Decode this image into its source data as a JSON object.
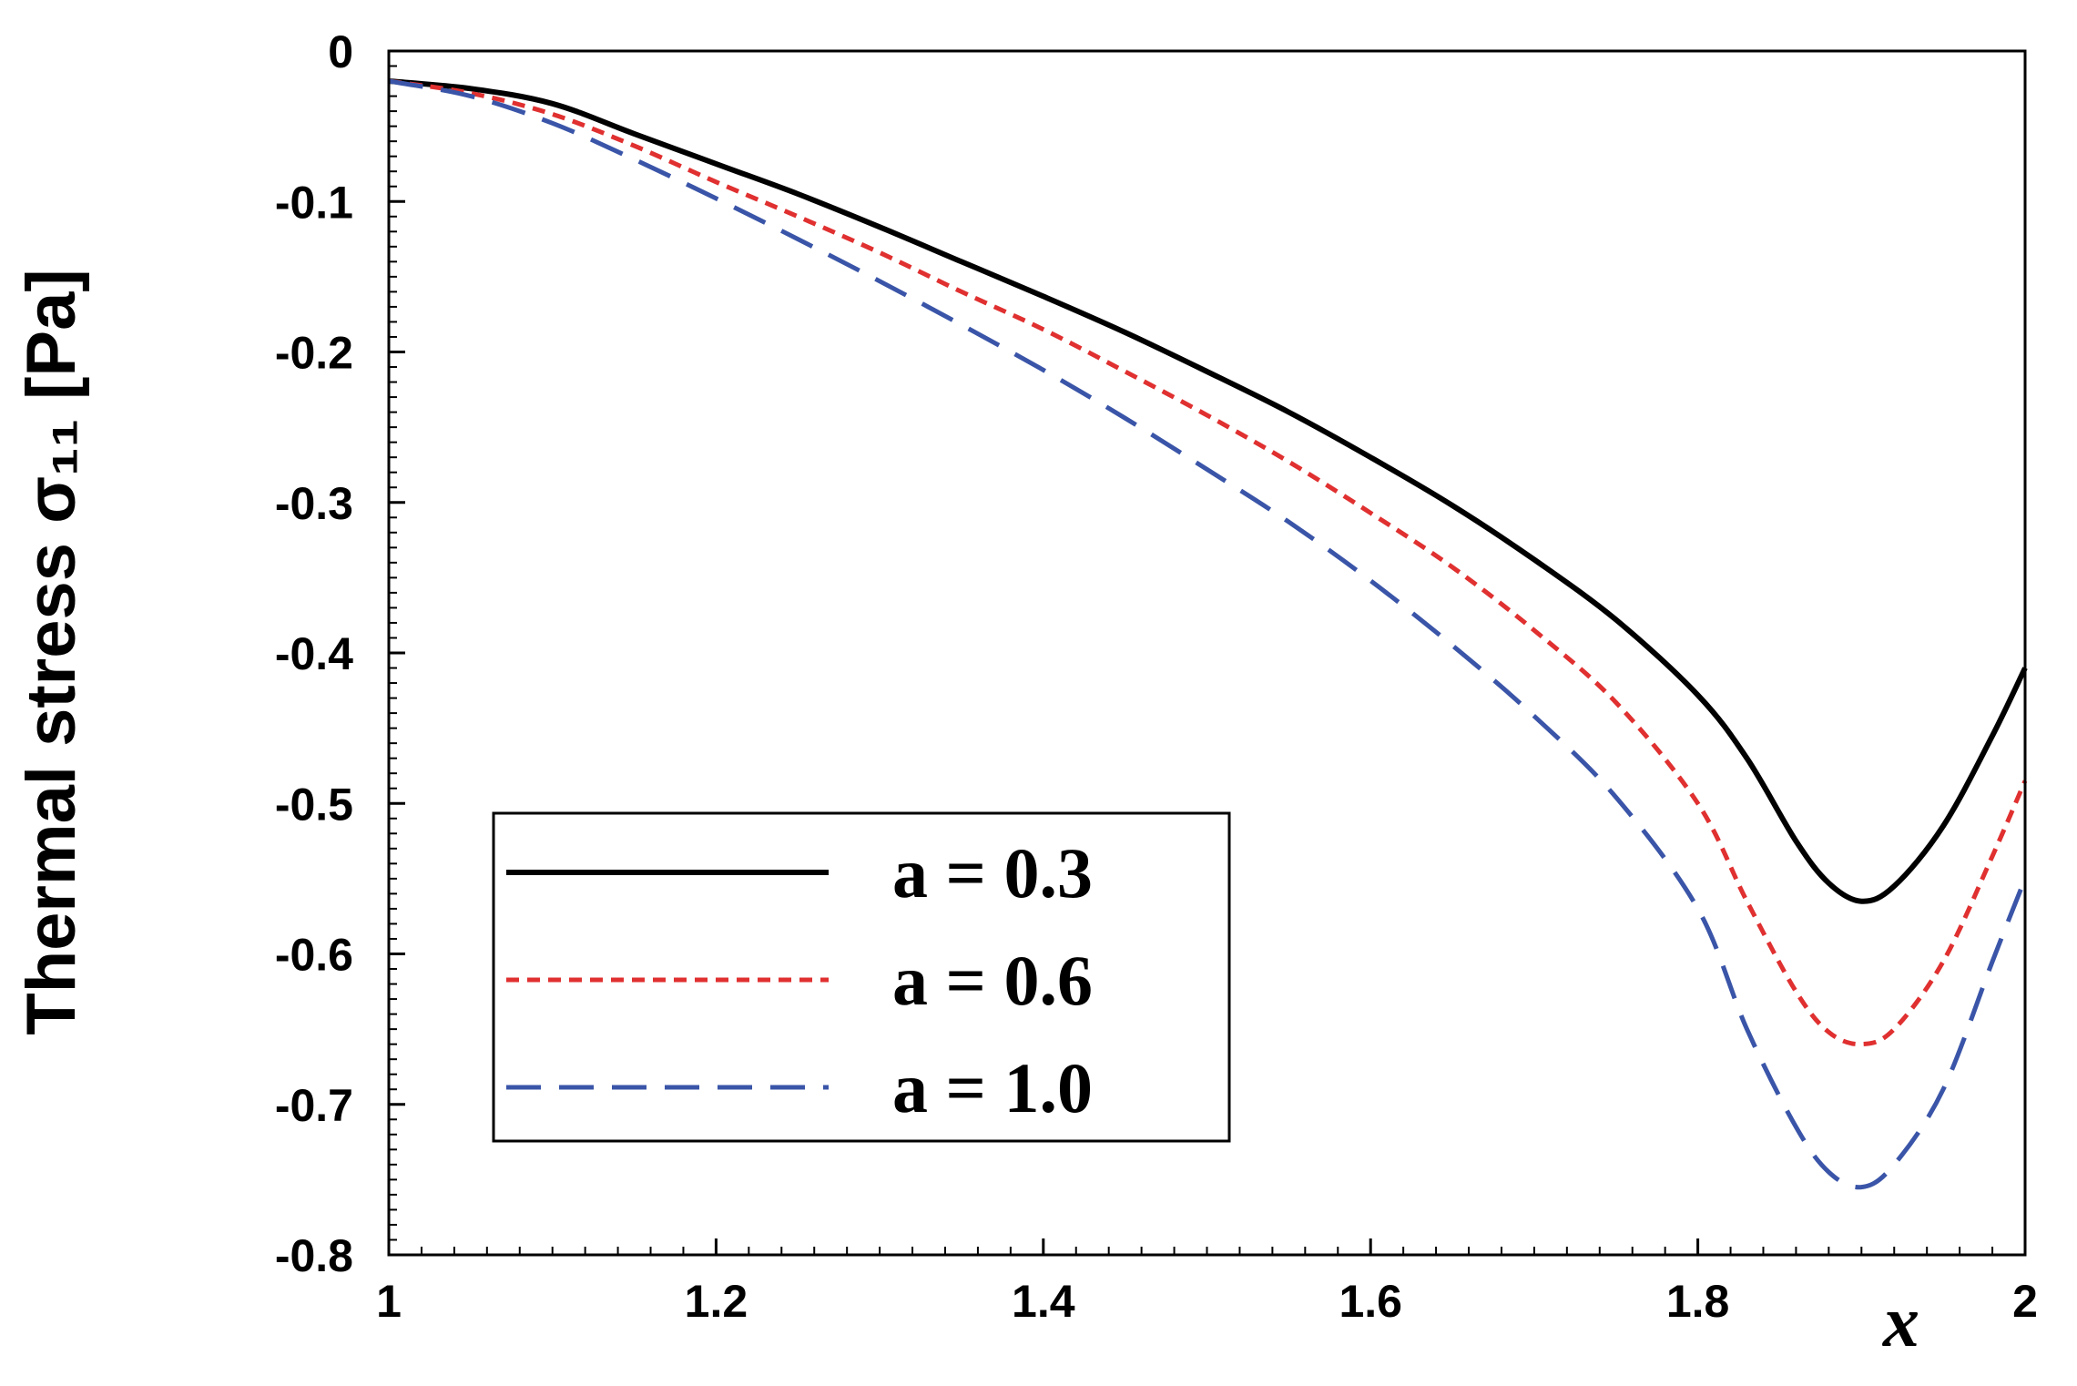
{
  "chart_data": {
    "type": "line",
    "ylabel": "Thermal stress σ₁₁ [Pa]",
    "xlabel": "x",
    "xlim": [
      1,
      2
    ],
    "ylim": [
      -0.8,
      0
    ],
    "x_ticks": [
      "1",
      "1.2",
      "1.4",
      "1.6",
      "1.8",
      "2"
    ],
    "y_ticks": [
      "0",
      "-0.1",
      "-0.2",
      "-0.3",
      "-0.4",
      "-0.5",
      "-0.6",
      "-0.7",
      "-0.8"
    ],
    "grid": false,
    "legend_position": "bottom-left",
    "series": [
      {
        "name": "a = 0.3",
        "color": "#000000",
        "style": "solid",
        "x": [
          1.0,
          1.05,
          1.1,
          1.15,
          1.2,
          1.25,
          1.3,
          1.35,
          1.4,
          1.45,
          1.5,
          1.55,
          1.6,
          1.65,
          1.7,
          1.75,
          1.8,
          1.83,
          1.86,
          1.88,
          1.9,
          1.92,
          1.95,
          1.98,
          2.0
        ],
        "values": [
          -0.02,
          -0.025,
          -0.035,
          -0.055,
          -0.075,
          -0.095,
          -0.117,
          -0.14,
          -0.163,
          -0.187,
          -0.213,
          -0.24,
          -0.27,
          -0.302,
          -0.338,
          -0.378,
          -0.428,
          -0.47,
          -0.525,
          -0.553,
          -0.565,
          -0.555,
          -0.515,
          -0.455,
          -0.41
        ]
      },
      {
        "name": "a = 0.6",
        "color": "#e03030",
        "style": "short-dash",
        "x": [
          1.0,
          1.05,
          1.1,
          1.15,
          1.2,
          1.25,
          1.3,
          1.35,
          1.4,
          1.45,
          1.5,
          1.55,
          1.6,
          1.65,
          1.7,
          1.75,
          1.8,
          1.83,
          1.86,
          1.88,
          1.9,
          1.92,
          1.95,
          1.98,
          2.0
        ],
        "values": [
          -0.02,
          -0.028,
          -0.042,
          -0.063,
          -0.087,
          -0.11,
          -0.134,
          -0.16,
          -0.185,
          -0.213,
          -0.242,
          -0.273,
          -0.307,
          -0.343,
          -0.385,
          -0.433,
          -0.5,
          -0.565,
          -0.625,
          -0.652,
          -0.66,
          -0.65,
          -0.605,
          -0.535,
          -0.485
        ]
      },
      {
        "name": "a = 1.0",
        "color": "#3a55a8",
        "style": "long-dash",
        "x": [
          1.0,
          1.05,
          1.1,
          1.15,
          1.2,
          1.25,
          1.3,
          1.35,
          1.4,
          1.45,
          1.5,
          1.55,
          1.6,
          1.65,
          1.7,
          1.75,
          1.8,
          1.83,
          1.86,
          1.88,
          1.9,
          1.92,
          1.95,
          1.98,
          2.0
        ],
        "values": [
          -0.02,
          -0.03,
          -0.048,
          -0.072,
          -0.098,
          -0.125,
          -0.153,
          -0.182,
          -0.212,
          -0.244,
          -0.278,
          -0.313,
          -0.352,
          -0.395,
          -0.442,
          -0.496,
          -0.57,
          -0.65,
          -0.715,
          -0.745,
          -0.755,
          -0.74,
          -0.69,
          -0.605,
          -0.55
        ]
      }
    ]
  }
}
